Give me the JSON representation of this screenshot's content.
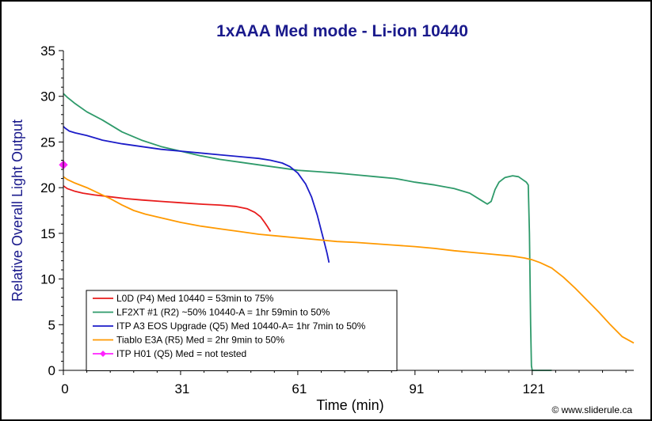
{
  "chart_data": {
    "type": "line",
    "title": "1xAAA Med mode - Li-ion 10440",
    "xlabel": "Time (min)",
    "ylabel": "Relative Overall Light Output",
    "xlim": [
      0,
      146
    ],
    "ylim": [
      0,
      35
    ],
    "x_ticks": [
      0,
      31,
      61,
      91,
      121
    ],
    "y_ticks": [
      0,
      5,
      10,
      15,
      20,
      25,
      30,
      35
    ],
    "grid": false,
    "legend_position": "bottom-left",
    "series": [
      {
        "name": "L0D (P4) Med 10440 = 53min to 75%",
        "color": "#e81c1c",
        "marker": "none",
        "x": [
          0,
          1,
          3,
          5,
          8,
          12,
          16,
          20,
          25,
          30,
          35,
          40,
          44,
          47,
          49,
          50.5,
          51.5,
          52.3,
          53
        ],
        "y": [
          20.2,
          19.9,
          19.6,
          19.4,
          19.2,
          19.0,
          18.8,
          18.65,
          18.5,
          18.35,
          18.2,
          18.1,
          17.95,
          17.7,
          17.3,
          16.8,
          16.2,
          15.7,
          15.2
        ]
      },
      {
        "name": "LF2XT #1 (R2) ~50% 10440-A = 1hr 59min to 50%",
        "color": "#2e9a6a",
        "marker": "none",
        "x": [
          0,
          1,
          3,
          6,
          10,
          15,
          20,
          25,
          30,
          35,
          40,
          45,
          50,
          55,
          60,
          65,
          70,
          75,
          80,
          85,
          90,
          95,
          100,
          104,
          107,
          108.5,
          109.5,
          110.5,
          111.5,
          113,
          115,
          116.5,
          117.5,
          118.5,
          119,
          119.3,
          119.6,
          119.8,
          120,
          121,
          123,
          125
        ],
        "y": [
          30.3,
          29.9,
          29.2,
          28.3,
          27.4,
          26.1,
          25.2,
          24.5,
          24.0,
          23.5,
          23.1,
          22.8,
          22.5,
          22.2,
          21.9,
          21.75,
          21.6,
          21.4,
          21.2,
          21.0,
          20.6,
          20.3,
          19.9,
          19.4,
          18.6,
          18.2,
          18.5,
          19.8,
          20.6,
          21.1,
          21.3,
          21.2,
          20.9,
          20.6,
          20.3,
          15.0,
          5.0,
          0.5,
          0,
          0,
          0,
          0
        ]
      },
      {
        "name": "ITP A3 EOS Upgrade (Q5) Med 10440-A= 1hr 7min to 50%",
        "color": "#1c1cc8",
        "marker": "none",
        "x": [
          0,
          0.5,
          1.5,
          3,
          6,
          10,
          15,
          20,
          25,
          30,
          35,
          40,
          45,
          50,
          53,
          56,
          58,
          60,
          62,
          63.5,
          65,
          66,
          66.8,
          67.5,
          68
        ],
        "y": [
          26.7,
          26.5,
          26.2,
          26.0,
          25.7,
          25.2,
          24.8,
          24.5,
          24.2,
          24.0,
          23.8,
          23.6,
          23.4,
          23.2,
          23.0,
          22.7,
          22.3,
          21.6,
          20.4,
          19.0,
          17.0,
          15.3,
          14.0,
          12.8,
          11.8
        ]
      },
      {
        "name": "Tiablo E3A (R5) Med = 2hr 9min to 50%",
        "color": "#ff9900",
        "marker": "none",
        "x": [
          0,
          1,
          3,
          6,
          9,
          12,
          15,
          18,
          21,
          25,
          30,
          35,
          40,
          45,
          50,
          55,
          60,
          65,
          70,
          75,
          80,
          85,
          90,
          95,
          100,
          105,
          110,
          115,
          118,
          120,
          122,
          125,
          128,
          131,
          134,
          137,
          140,
          143,
          146
        ],
        "y": [
          21.2,
          20.9,
          20.5,
          20.0,
          19.4,
          18.8,
          18.1,
          17.5,
          17.1,
          16.7,
          16.2,
          15.8,
          15.5,
          15.2,
          14.9,
          14.7,
          14.5,
          14.3,
          14.1,
          14.0,
          13.85,
          13.7,
          13.55,
          13.35,
          13.1,
          12.9,
          12.7,
          12.5,
          12.3,
          12.1,
          11.8,
          11.2,
          10.2,
          9.0,
          7.7,
          6.4,
          5.0,
          3.7,
          3.0
        ]
      },
      {
        "name": "ITP H01 (Q5) Med = not tested",
        "color": "#ff22ff",
        "marker": "diamond",
        "x": [
          0
        ],
        "y": [
          22.5
        ]
      }
    ]
  },
  "credit": "© www.sliderule.ca"
}
